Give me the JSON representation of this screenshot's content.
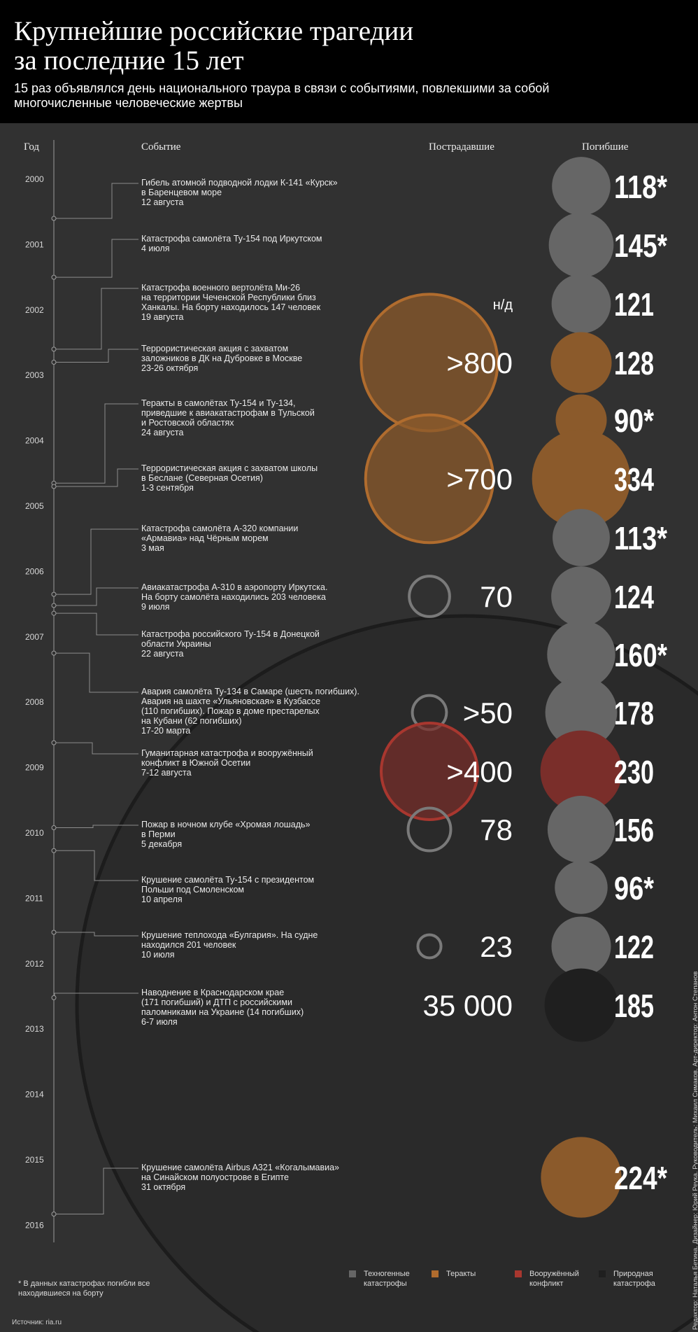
{
  "title": "Крупнейшие российские трагедии\nза последние 15 лет",
  "subtitle": "15 раз объявлялся день национального траура в связи с событиями, повлекшими за собой многочисленные человеческие жертвы",
  "columns": {
    "year": "Год",
    "event": "Событие",
    "injured": "Пострадавшие",
    "killed": "Погибшие"
  },
  "colors": {
    "tech": "#666666",
    "terror": "#8b5a2b",
    "terror_ring": "#b06c2e",
    "war": "#7a2e2a",
    "war_ring": "#a8372f",
    "nature": "#1f1f1f",
    "ring_gray": "#7a7a7a"
  },
  "chart_data": {
    "type": "bubble-timeline",
    "years": [
      "2000",
      "2001",
      "2002",
      "2003",
      "2004",
      "2005",
      "2006",
      "2007",
      "2008",
      "2009",
      "2010",
      "2011",
      "2012",
      "2013",
      "2014",
      "2015",
      "2016"
    ],
    "events": [
      {
        "date_fraction": 2000.6,
        "lines": [
          "Гибель атомной подводной лодки К-141 «Курск»",
          "в Баренцевом море",
          "12 августа"
        ],
        "category": "tech",
        "injured": null,
        "injured_label": "",
        "killed": 118,
        "killed_label": "118*"
      },
      {
        "date_fraction": 2001.5,
        "lines": [
          "Катастрофа самолёта Ту-154 под Иркутском",
          "4 июля"
        ],
        "category": "tech",
        "injured": null,
        "injured_label": "",
        "killed": 145,
        "killed_label": "145*"
      },
      {
        "date_fraction": 2002.6,
        "lines": [
          "Катастрофа военного вертолёта Ми-26",
          "на территории Чеченской Республики близ",
          "Ханкалы. На борту находилось 147 человек",
          "19 августа"
        ],
        "category": "tech",
        "injured": null,
        "injured_label": "н/д",
        "killed": 121,
        "killed_label": "121"
      },
      {
        "date_fraction": 2002.8,
        "lines": [
          "Террористическая акция с захватом",
          "заложников в ДК на Дубровке в Москве",
          "23-26 октября"
        ],
        "category": "terror",
        "injured": 800,
        "injured_label": ">800",
        "killed": 128,
        "killed_label": "128"
      },
      {
        "date_fraction": 2004.65,
        "lines": [
          "Теракты в самолётах Ту-154 и Ту-134,",
          "приведшие к авиакатастрофам в Тульской",
          "и Ростовской областях",
          "24 августа"
        ],
        "category": "terror",
        "injured": null,
        "injured_label": "",
        "killed": 90,
        "killed_label": "90*"
      },
      {
        "date_fraction": 2004.7,
        "lines": [
          "Террористическая акция с захватом школы",
          "в Беслане (Северная Осетия)",
          "1-3 сентября"
        ],
        "category": "terror",
        "injured": 700,
        "injured_label": ">700",
        "killed": 334,
        "killed_label": "334"
      },
      {
        "date_fraction": 2006.35,
        "lines": [
          "Катастрофа самолёта А-320 компании",
          "«Армавиа» над Чёрным морем",
          "3 мая"
        ],
        "category": "tech",
        "injured": null,
        "injured_label": "",
        "killed": 113,
        "killed_label": "113*"
      },
      {
        "date_fraction": 2006.52,
        "lines": [
          "Авиакатастрофа А-310 в аэропорту Иркутска.",
          "На борту самолёта находились 203 человека",
          "9 июля"
        ],
        "category": "tech",
        "injured": 70,
        "injured_label": "70",
        "killed": 124,
        "killed_label": "124"
      },
      {
        "date_fraction": 2006.64,
        "lines": [
          "Катастрофа российского Ту-154 в Донецкой",
          "области Украины",
          "22 августа"
        ],
        "category": "tech",
        "injured": null,
        "injured_label": "",
        "killed": 160,
        "killed_label": "160*"
      },
      {
        "date_fraction": 2007.25,
        "lines": [
          "Авария самолёта Ту-134 в Самаре (шесть погибших).",
          "Авария на шахте «Ульяновская» в Кузбассе",
          "(110 погибших). Пожар в доме престарелых",
          "на Кубани (62 погибших)",
          "17-20 марта"
        ],
        "category": "tech",
        "injured": 50,
        "injured_label": ">50",
        "killed": 178,
        "killed_label": "178"
      },
      {
        "date_fraction": 2008.62,
        "lines": [
          "Гуманитарная катастрофа и вооружённый",
          "конфликт в Южной Осетии",
          "7-12 августа"
        ],
        "category": "war",
        "injured": 400,
        "injured_label": ">400",
        "killed": 230,
        "killed_label": "230"
      },
      {
        "date_fraction": 2009.92,
        "lines": [
          "Пожар в ночном клубе «Хромая лошадь»",
          "в Перми",
          "5 декабря"
        ],
        "category": "tech",
        "injured": 78,
        "injured_label": "78",
        "killed": 156,
        "killed_label": "156"
      },
      {
        "date_fraction": 2010.27,
        "lines": [
          "Крушение самолёта Ту-154 с президентом",
          "Польши под Смоленском",
          "10 апреля"
        ],
        "category": "tech",
        "injured": null,
        "injured_label": "",
        "killed": 96,
        "killed_label": "96*"
      },
      {
        "date_fraction": 2011.52,
        "lines": [
          "Крушение теплохода «Булгария». На судне",
          "находился 201 человек",
          "10 июля"
        ],
        "category": "tech",
        "injured": 23,
        "injured_label": "23",
        "killed": 122,
        "killed_label": "122"
      },
      {
        "date_fraction": 2012.52,
        "lines": [
          "Наводнение в Краснодарском крае",
          "(171 погибший) и ДТП с российскими",
          "паломниками на Украине (14 погибших)",
          "6-7 июля"
        ],
        "category": "nature",
        "injured": 35000,
        "injured_label": "35 000",
        "killed": 185,
        "killed_label": "185"
      },
      {
        "date_fraction": 2015.83,
        "lines": [
          "Крушение самолёта Airbus A321 «Когалымавиа»",
          "на Синайском полуострове в Египте",
          "31 октября"
        ],
        "category": "terror",
        "injured": null,
        "injured_label": "",
        "killed": 224,
        "killed_label": "224*"
      }
    ]
  },
  "legend": [
    {
      "label": "Техногенные\nкатастрофы",
      "color": "#666666"
    },
    {
      "label": "Теракты",
      "color": "#b06c2e"
    },
    {
      "label": "Вооружённый\nконфликт",
      "color": "#a8372f"
    },
    {
      "label": "Природная\nкатастрофа",
      "color": "#1f1f1f"
    }
  ],
  "footnote": "* В данных катастрофах погибли все находившиеся на борту",
  "source": "Источник: ria.ru",
  "credits": "Редактор: Наталья Бетина. Дизайнер: Юрий Реука. Руководитель: Михаил Симаков. Арт-директор: Антон Степанов"
}
